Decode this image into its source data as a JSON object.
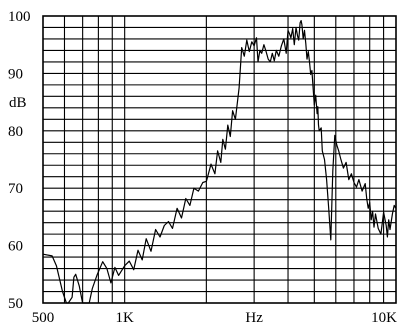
{
  "chart_data": {
    "type": "line",
    "title": "",
    "xlabel": "Hz",
    "ylabel": "dB",
    "x_scale": "log",
    "xlim": [
      500,
      10000
    ],
    "ylim": [
      50,
      100
    ],
    "grid": true,
    "x_ticks": [
      {
        "value": 500,
        "label": "500"
      },
      {
        "value": 1000,
        "label": "1K"
      },
      {
        "value": 10000,
        "label": "10K"
      }
    ],
    "y_ticks": [
      {
        "value": 100,
        "label": "100"
      },
      {
        "value": 90,
        "label": "90"
      },
      {
        "value": 80,
        "label": "80"
      },
      {
        "value": 70,
        "label": "70"
      },
      {
        "value": 60,
        "label": "60"
      },
      {
        "value": 50,
        "label": "50"
      }
    ],
    "series": [
      {
        "name": "",
        "x": [
          500,
          540,
          560,
          590,
          610,
          620,
          640,
          650,
          660,
          680,
          700,
          740,
          760,
          790,
          830,
          860,
          890,
          920,
          950,
          1000,
          1040,
          1080,
          1120,
          1160,
          1200,
          1250,
          1300,
          1350,
          1400,
          1450,
          1500,
          1560,
          1620,
          1680,
          1740,
          1800,
          1870,
          1940,
          2000,
          2080,
          2150,
          2200,
          2260,
          2300,
          2350,
          2400,
          2450,
          2500,
          2560,
          2600,
          2640,
          2700,
          2760,
          2820,
          2880,
          2940,
          3000,
          3060,
          3100,
          3150,
          3200,
          3260,
          3320,
          3380,
          3440,
          3500,
          3560,
          3620,
          3700,
          3780,
          3860,
          3940,
          4000,
          4060,
          4100,
          4160,
          4220,
          4280,
          4340,
          4380,
          4400,
          4430,
          4470,
          4500,
          4550,
          4600,
          4650,
          4700,
          4750,
          4800,
          4850,
          4900,
          4950,
          5000,
          5060,
          5120,
          5150,
          5180,
          5210,
          5300,
          5350,
          5450,
          5550,
          5650,
          5750,
          5850,
          5950,
          6050,
          6150,
          6250,
          6400,
          6550,
          6700,
          6850,
          7000,
          7150,
          7300,
          7500,
          7700,
          7800,
          7900,
          8000,
          8100,
          8200,
          8300,
          8400,
          8600,
          8800,
          9000,
          9200,
          9300,
          9400,
          9500,
          9700,
          9850,
          10000
        ],
        "y": [
          58.5,
          58.2,
          56.5,
          52.0,
          49.0,
          48.5,
          51.0,
          54.5,
          55.0,
          53.0,
          48.2,
          49.8,
          52.5,
          54.8,
          57.2,
          56.0,
          53.5,
          56.2,
          54.8,
          56.5,
          57.3,
          55.8,
          59.2,
          57.5,
          61.2,
          59.0,
          62.8,
          61.5,
          63.5,
          64.2,
          63.0,
          66.5,
          64.8,
          68.2,
          67.0,
          70.0,
          69.5,
          71.0,
          71.2,
          74.2,
          72.5,
          76.5,
          74.5,
          78.5,
          76.8,
          81.0,
          79.0,
          83.5,
          82.0,
          84.8,
          87.5,
          94.5,
          93.0,
          95.8,
          93.8,
          95.5,
          94.8,
          96.2,
          92.0,
          94.0,
          93.5,
          95.0,
          93.8,
          92.5,
          92.0,
          93.5,
          92.2,
          94.0,
          93.0,
          94.8,
          96.0,
          93.5,
          97.5,
          96.8,
          96.2,
          97.8,
          95.0,
          98.0,
          96.5,
          95.8,
          97.0,
          98.8,
          99.2,
          98.5,
          96.0,
          97.5,
          95.2,
          92.5,
          93.8,
          92.0,
          89.8,
          90.5,
          87.5,
          84.5,
          86.2,
          83.0,
          84.2,
          81.0,
          80.0,
          80.5,
          76.5,
          75.0,
          71.5,
          66.5,
          61.0,
          73.0,
          79.2,
          77.5,
          76.5,
          75.2,
          73.5,
          74.5,
          71.5,
          72.5,
          71.0,
          70.2,
          71.5,
          69.5,
          70.8,
          68.2,
          66.5,
          67.5,
          64.5,
          66.0,
          63.2,
          65.5,
          63.0,
          62.0,
          65.8,
          63.5,
          61.5,
          64.5,
          62.8,
          65.5,
          67.0,
          66.5
        ]
      }
    ]
  }
}
